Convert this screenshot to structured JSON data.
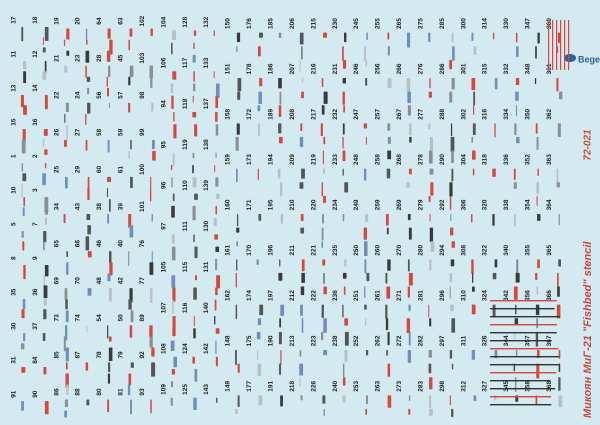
{
  "title": "Микоян МиГ-21 \"Fishbed\" stencil",
  "code": "72-021",
  "brand": "Begemot",
  "columns": [
    [
      "17",
      "11",
      "13",
      "15",
      "1",
      "10",
      "5",
      "8",
      "35",
      "30",
      "31",
      "91"
    ],
    [
      "18",
      "12",
      "14",
      "16",
      "2",
      "3",
      "7",
      "9",
      "36",
      "37",
      "84",
      "90"
    ],
    [
      "19",
      "21",
      "22",
      "26",
      "25",
      "34",
      "65",
      "69",
      "73",
      "85",
      "86"
    ],
    [
      "20",
      "23",
      "24",
      "27",
      "29",
      "43",
      "66",
      "70",
      "74",
      "87",
      "88"
    ],
    [
      "64",
      "28",
      "56",
      "58",
      "60",
      "38",
      "46",
      "48",
      "54",
      "78",
      "80"
    ],
    [
      "63",
      "45",
      "57",
      "59",
      "61",
      "39",
      "40",
      "42",
      "50",
      "79",
      "81"
    ],
    [
      "102",
      "103",
      "98",
      "99",
      "100",
      "101",
      "76",
      "77",
      "89",
      "92",
      "93"
    ],
    [
      "104",
      "106",
      "94",
      "95",
      "96",
      "97",
      "105",
      "107",
      "108",
      "109"
    ],
    [
      "128",
      "117",
      "118",
      "119",
      "110",
      "111",
      "115",
      "116",
      "124",
      "125"
    ],
    [
      "132",
      "133",
      "137",
      "138",
      "139",
      "130",
      "131",
      "140",
      "142",
      "143"
    ],
    [
      "150",
      "151",
      "158",
      "159",
      "160",
      "161",
      "162",
      "148",
      "149"
    ],
    [
      "176",
      "178",
      "172",
      "173",
      "171",
      "170",
      "174",
      "175",
      "177"
    ],
    [
      "185",
      "186",
      "189",
      "194",
      "195",
      "196",
      "197",
      "190",
      "191"
    ],
    [
      "206",
      "207",
      "208",
      "209",
      "210",
      "211",
      "212",
      "213",
      "218"
    ],
    [
      "215",
      "216",
      "217",
      "219",
      "220",
      "221",
      "222",
      "223",
      "226"
    ],
    [
      "230",
      "231",
      "232",
      "233",
      "234",
      "235",
      "236",
      "238",
      "240"
    ],
    [
      "245",
      "246",
      "247",
      "248",
      "249",
      "250",
      "251",
      "252",
      "253"
    ],
    [
      "255",
      "256",
      "257",
      "258",
      "259",
      "260",
      "261",
      "262",
      "263"
    ],
    [
      "265",
      "266",
      "267",
      "268",
      "269",
      "270",
      "271",
      "272",
      "273"
    ],
    [
      "275",
      "276",
      "277",
      "278",
      "279",
      "280",
      "281",
      "282",
      "283"
    ],
    [
      "285",
      "286",
      "288",
      "290",
      "292",
      "294",
      "296",
      "297",
      "298"
    ],
    [
      "300",
      "301",
      "302",
      "304",
      "306",
      "308",
      "310",
      "311",
      "312"
    ],
    [
      "314",
      "315",
      "316",
      "318",
      "320",
      "322",
      "324",
      "326",
      "327"
    ],
    [
      "330",
      "332",
      "334",
      "336",
      "338",
      "340",
      "342",
      "344",
      "345"
    ],
    [
      "347",
      "348",
      "350",
      "352",
      "354",
      "355",
      "356",
      "357",
      "358"
    ],
    [
      "360",
      "361",
      "362",
      "363",
      "364",
      "365",
      "366",
      "367",
      "368"
    ]
  ]
}
